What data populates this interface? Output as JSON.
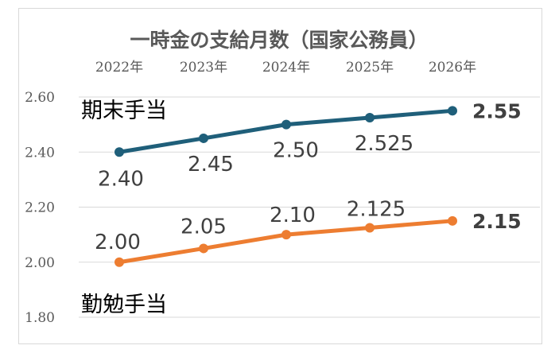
{
  "chart_data": {
    "type": "line",
    "title": "一時金の支給月数（国家公務員）",
    "categories": [
      "2022年",
      "2023年",
      "2024年",
      "2025年",
      "2026年"
    ],
    "y_ticks": [
      "2.60",
      "2.40",
      "2.20",
      "2.00",
      "1.80"
    ],
    "ylim": [
      1.8,
      2.6
    ],
    "grid": true,
    "legend": "none",
    "series": [
      {
        "name": "期末手当",
        "values": [
          2.4,
          2.45,
          2.5,
          2.525,
          2.55
        ],
        "labels": [
          "2.40",
          "2.45",
          "2.50",
          "2.525",
          "2.55"
        ],
        "color": "#1f5f7a"
      },
      {
        "name": "勤勉手当",
        "values": [
          2.0,
          2.05,
          2.1,
          2.125,
          2.15
        ],
        "labels": [
          "2.00",
          "2.05",
          "2.10",
          "2.125",
          "2.15"
        ],
        "color": "#ed7d31"
      }
    ]
  }
}
